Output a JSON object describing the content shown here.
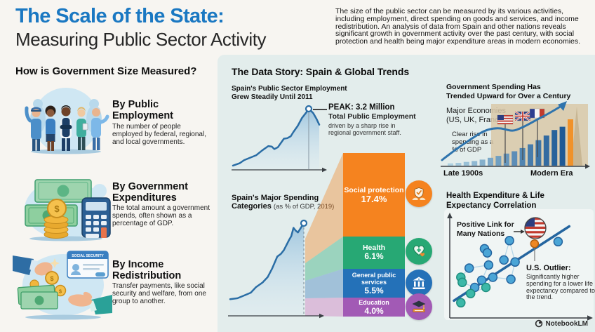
{
  "header": {
    "title_line1": "The Scale of the State:",
    "title_line2": "Measuring Public Sector Activity",
    "intro": "The size of the public sector can be measured by its various activities, including employment, direct spending on goods and services, and income redistribution. An analysis of data from Spain and other nations reveals significant growth in government activity over the past century, with social protection and health being major expenditure areas in modern economies."
  },
  "left_panel": {
    "heading": "How is Government Size Measured?",
    "items": [
      {
        "title": "By Public Employment",
        "description": "The number of people employed by federal, regional, and local governments.",
        "illustration": "public-workers"
      },
      {
        "title": "By Government Expenditures",
        "description": "The total amount a government spends, often shown as a percentage of GDP.",
        "illustration": "cash-coins-calculator"
      },
      {
        "title": "By Income Redistribution",
        "description": "Transfer payments, like social security and welfare, from one group to another.",
        "illustration": "hands-exchanging-coins",
        "card_label": "SOCIAL SECURITY"
      }
    ]
  },
  "data_story": {
    "heading": "The Data Story: Spain & Global Trends",
    "employment_chart": {
      "title_line1": "Spain's Public Sector Employment",
      "title_line2": "Grew Steadily Until 2011",
      "peak_heading": "PEAK: 3.2 Million",
      "peak_subheading": "Total Public Employment",
      "peak_detail": "driven by a sharp rise in regional government staff."
    },
    "spending_chart": {
      "title_line1": "Spain's Major Spending",
      "title_line2": "Categories",
      "subtitle": "(as % of GDP, 2019)",
      "categories": [
        {
          "label": "Social protection",
          "value": "17.4%",
          "color": "#f5831f",
          "icon": "shield-hands-icon"
        },
        {
          "label": "Health",
          "value": "6.1%",
          "color": "#27a874",
          "icon": "health-hearts-icon"
        },
        {
          "label": "General public services",
          "value": "5.5%",
          "color": "#2471b8",
          "icon": "government-building-icon"
        },
        {
          "label": "Education",
          "value": "4.0%",
          "color": "#a25ab5",
          "icon": "graduation-cap-icon"
        }
      ]
    },
    "trend_panel": {
      "title_line1": "Government Spending Has",
      "title_line2": "Trended Upward for Over a Century",
      "subtitle_line1": "Major Economies",
      "subtitle_line2": "(US, UK, France)",
      "note": "Clear rise in spending as a % of GDP",
      "x_start_label": "Late 1900s",
      "x_end_label": "Modern Era"
    },
    "correlation_panel": {
      "title_line1": "Health Expenditure & Life",
      "title_line2": "Expectancy Correlation",
      "positive_note_line1": "Positive Link for",
      "positive_note_line2": "Many Nations",
      "outlier_heading": "U.S. Outlier:",
      "outlier_detail": "Significantly higher spending for a lower life expectancy compared to the trend."
    }
  },
  "footer": {
    "watermark": "NotebookLM"
  },
  "chart_data": [
    {
      "type": "area",
      "title": "Spain's Public Sector Employment Grew Steadily Until 2011",
      "peak": {
        "label": "PEAK: 3.2 Million",
        "value": "3.2 million total public employment",
        "year": "2011",
        "note": "driven by a sharp rise in regional government staff"
      },
      "axes_labeled": false,
      "curve_normalized": [
        [
          0,
          0.07
        ],
        [
          0.08,
          0.11
        ],
        [
          0.13,
          0.16
        ],
        [
          0.2,
          0.2
        ],
        [
          0.27,
          0.24
        ],
        [
          0.34,
          0.32
        ],
        [
          0.41,
          0.39
        ],
        [
          0.45,
          0.38
        ],
        [
          0.48,
          0.34
        ],
        [
          0.52,
          0.37
        ],
        [
          0.56,
          0.45
        ],
        [
          0.59,
          0.51
        ],
        [
          0.63,
          0.52
        ],
        [
          0.67,
          0.55
        ],
        [
          0.7,
          0.62
        ],
        [
          0.75,
          0.72
        ],
        [
          0.8,
          0.85
        ],
        [
          0.85,
          0.94
        ],
        [
          0.88,
          1.0
        ],
        [
          0.93,
          0.93
        ],
        [
          0.97,
          0.83
        ],
        [
          1.0,
          0.74
        ]
      ]
    },
    {
      "type": "bar",
      "title": "Spain's Major Spending Categories",
      "subtitle": "(as % of GDP, 2019)",
      "categories": [
        "Social protection",
        "Health",
        "General public services",
        "Education"
      ],
      "values": [
        17.4,
        6.1,
        5.5,
        4.0
      ],
      "unit": "% of GDP",
      "colors": [
        "#f5831f",
        "#27a874",
        "#2471b8",
        "#a25ab5"
      ],
      "context_curve_normalized": [
        [
          0,
          0.18
        ],
        [
          0.1,
          0.19
        ],
        [
          0.19,
          0.22
        ],
        [
          0.28,
          0.25
        ],
        [
          0.35,
          0.31
        ],
        [
          0.44,
          0.36
        ],
        [
          0.51,
          0.42
        ],
        [
          0.57,
          0.51
        ],
        [
          0.64,
          0.64
        ],
        [
          0.69,
          0.67
        ],
        [
          0.73,
          0.71
        ],
        [
          0.8,
          0.82
        ],
        [
          0.83,
          0.86
        ],
        [
          0.86,
          0.95
        ],
        [
          0.89,
          0.92
        ],
        [
          0.92,
          0.9
        ],
        [
          0.96,
          0.95
        ],
        [
          1.0,
          1.0
        ]
      ]
    },
    {
      "type": "bar",
      "title": "Government Spending Has Trended Upward for Over a Century",
      "subtitle": "Major Economies (US, UK, France)",
      "annotation": "Clear rise in spending as a % of GDP",
      "x_axis": {
        "start": "Late 1900s",
        "end": "Modern Era"
      },
      "axes_labeled": false,
      "values_normalized": [
        0.05,
        0.06,
        0.08,
        0.1,
        0.13,
        0.17,
        0.21,
        0.26,
        0.31,
        0.38,
        0.46,
        0.55,
        0.65,
        0.77,
        0.84,
        1.0
      ],
      "highlight_last_color": "#f0922a"
    },
    {
      "type": "scatter",
      "title": "Health Expenditure & Life Expectancy Correlation",
      "trend": "positive",
      "axes_labeled": false,
      "annotations": [
        "Positive Link for Many Nations",
        "U.S. Outlier: Significantly higher spending for a lower life expectancy compared to the trend."
      ],
      "points_blue": [
        [
          0.43,
          0.76
        ],
        [
          0.25,
          0.68
        ],
        [
          0.27,
          0.64
        ],
        [
          0.28,
          0.52
        ],
        [
          0.39,
          0.57
        ],
        [
          0.47,
          0.55
        ],
        [
          0.14,
          0.49
        ],
        [
          0.23,
          0.37
        ],
        [
          0.18,
          0.3
        ],
        [
          0.44,
          0.38
        ],
        [
          0.78,
          0.75
        ],
        [
          0.31,
          0.4
        ]
      ],
      "points_teal": [
        [
          0.08,
          0.4
        ],
        [
          0.09,
          0.35
        ],
        [
          0.26,
          0.3
        ],
        [
          0.15,
          0.24
        ],
        [
          0.08,
          0.15
        ]
      ],
      "outlier_point": [
        0.61,
        0.73
      ],
      "trend_line_normalized": [
        [
          0.03,
          0.17
        ],
        [
          0.86,
          0.9
        ]
      ]
    }
  ]
}
